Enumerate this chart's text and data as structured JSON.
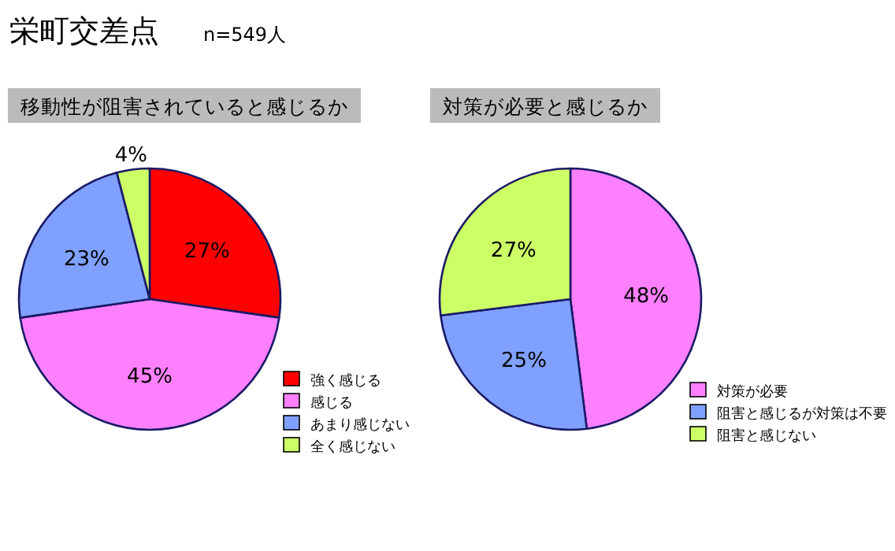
{
  "chart_data": [
    {
      "type": "pie",
      "title": "移動性が阻害されていると感じるか",
      "annotations": [
        "栄町交差点",
        "n=549人"
      ],
      "categories": [
        "強く感じる",
        "感じる",
        "あまり感じない",
        "全く感じない"
      ],
      "values": [
        27,
        45,
        23,
        4
      ],
      "colors": [
        "#ff0000",
        "#ff80ff",
        "#80a0ff",
        "#ccff66"
      ],
      "value_labels": [
        "27%",
        "45%",
        "23%",
        "4%"
      ],
      "legend": "bottom right"
    },
    {
      "type": "pie",
      "title": "対策が必要と感じるか",
      "categories": [
        "対策が必要",
        "阻害と感じるが対策は不要",
        "阻害と感じない"
      ],
      "values": [
        48,
        25,
        27
      ],
      "colors": [
        "#ff80ff",
        "#80a0ff",
        "#ccff66"
      ],
      "value_labels": [
        "48%",
        "25%",
        "27%"
      ],
      "legend": "bottom right"
    }
  ]
}
